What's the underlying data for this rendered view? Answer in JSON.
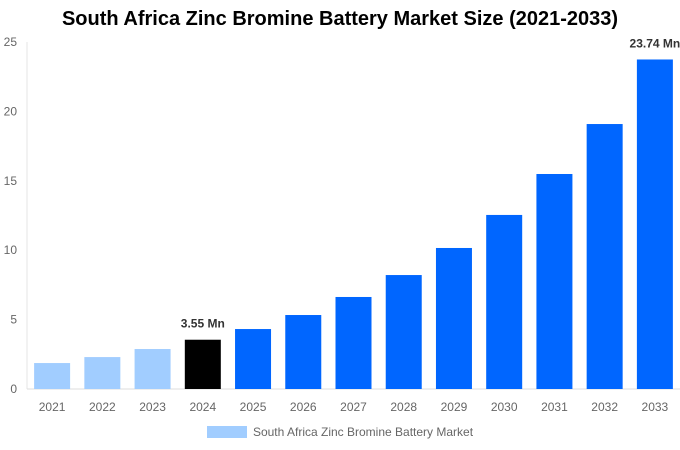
{
  "chart_data": {
    "type": "bar",
    "title": "South Africa Zinc Bromine Battery Market Size (2021-2033)",
    "categories": [
      "2021",
      "2022",
      "2023",
      "2024",
      "2025",
      "2026",
      "2027",
      "2028",
      "2029",
      "2030",
      "2031",
      "2032",
      "2033"
    ],
    "series": [
      {
        "name": "South Africa Zinc Bromine Battery Market",
        "values": [
          1.87,
          2.3,
          2.88,
          3.55,
          4.32,
          5.33,
          6.63,
          8.21,
          10.16,
          12.54,
          15.49,
          19.09,
          23.74
        ]
      }
    ],
    "data_labels": {
      "2024": "3.55 Mn",
      "2033": "23.74 Mn"
    },
    "ylim": [
      0,
      25
    ],
    "yticks": [
      0,
      5,
      10,
      15,
      20,
      25
    ],
    "grid": false,
    "legend": "bottom",
    "colors": {
      "historical": "#a1cdff",
      "base_year": "#000000",
      "forecast": "#0066ff"
    }
  }
}
